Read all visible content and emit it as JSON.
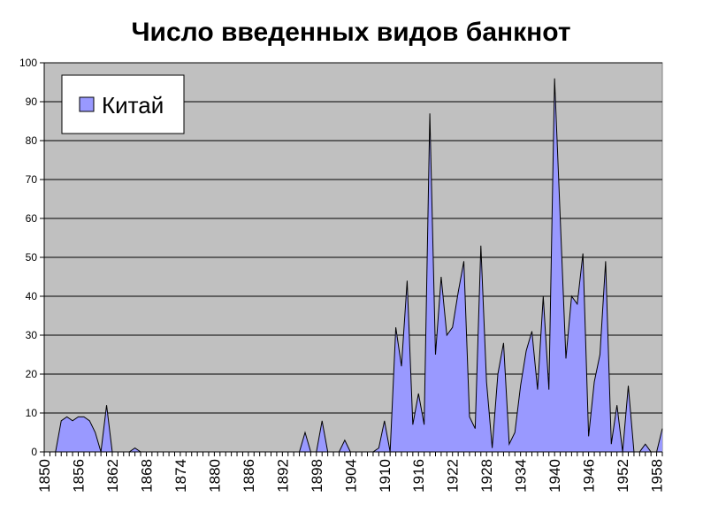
{
  "chart_data": {
    "type": "area",
    "title": "Число введенных видов банкнот",
    "xlabel": "",
    "ylabel": "",
    "xlim": [
      1850,
      1959
    ],
    "ylim": [
      0,
      100
    ],
    "yticks": [
      0,
      10,
      20,
      30,
      40,
      50,
      60,
      70,
      80,
      90,
      100
    ],
    "xticks": [
      "1850",
      "1856",
      "1862",
      "1868",
      "1874",
      "1880",
      "1886",
      "1892",
      "1898",
      "1904",
      "1910",
      "1916",
      "1922",
      "1928",
      "1934",
      "1940",
      "1946",
      "1952",
      "1958"
    ],
    "grid": true,
    "legend_position": "top-left",
    "colors": {
      "plot_background": "#c0c0c0",
      "fill": "#9999ff",
      "line": "#000000"
    },
    "series": [
      {
        "name": "Китай",
        "x": [
          1850,
          1851,
          1852,
          1853,
          1854,
          1855,
          1856,
          1857,
          1858,
          1859,
          1860,
          1861,
          1862,
          1863,
          1864,
          1865,
          1866,
          1867,
          1868,
          1869,
          1870,
          1871,
          1872,
          1873,
          1874,
          1875,
          1876,
          1877,
          1878,
          1879,
          1880,
          1881,
          1882,
          1883,
          1884,
          1885,
          1886,
          1887,
          1888,
          1889,
          1890,
          1891,
          1892,
          1893,
          1894,
          1895,
          1896,
          1897,
          1898,
          1899,
          1900,
          1901,
          1902,
          1903,
          1904,
          1905,
          1906,
          1907,
          1908,
          1909,
          1910,
          1911,
          1912,
          1913,
          1914,
          1915,
          1916,
          1917,
          1918,
          1919,
          1920,
          1921,
          1922,
          1923,
          1924,
          1925,
          1926,
          1927,
          1928,
          1929,
          1930,
          1931,
          1932,
          1933,
          1934,
          1935,
          1936,
          1937,
          1938,
          1939,
          1940,
          1941,
          1942,
          1943,
          1944,
          1945,
          1946,
          1947,
          1948,
          1949,
          1950,
          1951,
          1952,
          1953,
          1954,
          1955,
          1956,
          1957,
          1958,
          1959
        ],
        "values": [
          0,
          0,
          0,
          8,
          9,
          8,
          9,
          9,
          8,
          5,
          0,
          12,
          0,
          0,
          0,
          0,
          1,
          0,
          0,
          0,
          0,
          0,
          0,
          0,
          0,
          0,
          0,
          0,
          0,
          0,
          0,
          0,
          0,
          0,
          0,
          0,
          0,
          0,
          0,
          0,
          0,
          0,
          0,
          0,
          0,
          0,
          5,
          0,
          0,
          8,
          0,
          0,
          0,
          3,
          0,
          0,
          0,
          0,
          0,
          1,
          8,
          0,
          32,
          22,
          44,
          7,
          15,
          7,
          87,
          25,
          45,
          30,
          32,
          41,
          49,
          9,
          6,
          53,
          18,
          1,
          20,
          28,
          2,
          5,
          17,
          26,
          31,
          16,
          40,
          16,
          96,
          60,
          24,
          40,
          38,
          51,
          4,
          18,
          25,
          49,
          2,
          12,
          0,
          17,
          0,
          0,
          2,
          0,
          0,
          6
        ]
      }
    ]
  }
}
